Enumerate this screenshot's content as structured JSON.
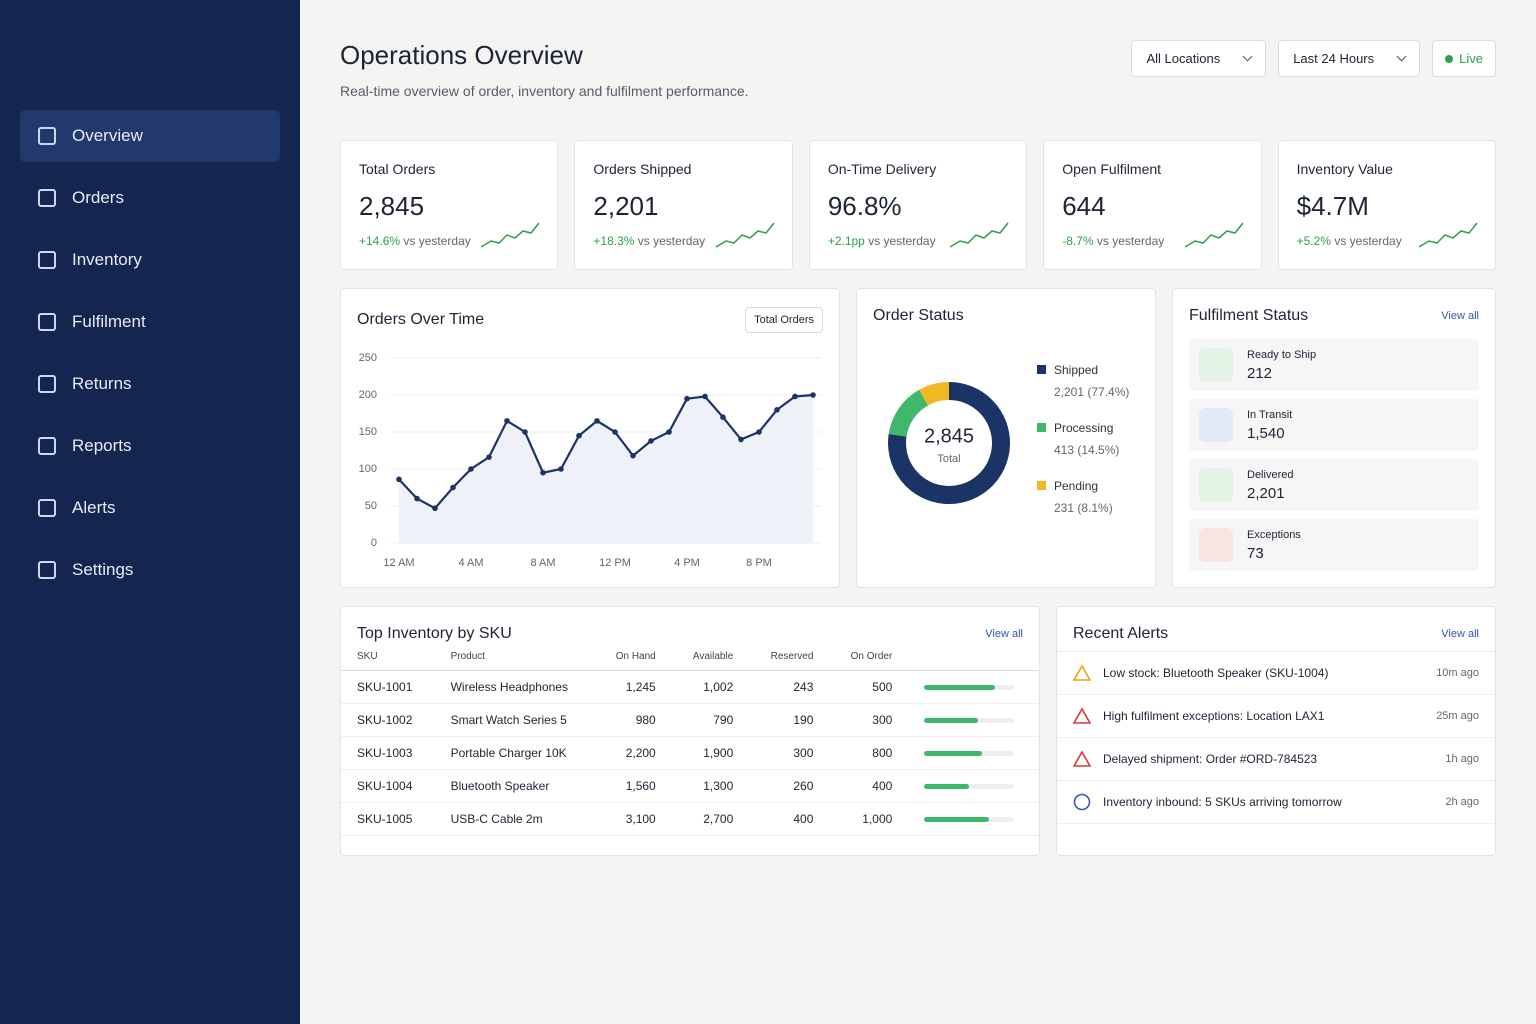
{
  "sidebar": {
    "items": [
      "Overview",
      "Orders",
      "Inventory",
      "Fulfilment",
      "Returns",
      "Reports",
      "Alerts",
      "Settings"
    ]
  },
  "header": {
    "title": "Operations Overview",
    "subtitle": "Real-time overview of order, inventory and fulfilment performance.",
    "filters": [
      "All Locations",
      "Last 24 Hours"
    ],
    "live": "Live"
  },
  "kpis": [
    {
      "label": "Total Orders",
      "value": "2,845",
      "change": "+14.6%",
      "note": "vs yesterday"
    },
    {
      "label": "Orders Shipped",
      "value": "2,201",
      "change": "+18.3%",
      "note": "vs yesterday"
    },
    {
      "label": "On-Time Delivery",
      "value": "96.8%",
      "change": "+2.1pp",
      "note": "vs yesterday"
    },
    {
      "label": "Open Fulfilment",
      "value": "644",
      "change": "-8.7%",
      "note": "vs yesterday"
    },
    {
      "label": "Inventory Value",
      "value": "$4.7M",
      "change": "+5.2%",
      "note": "vs yesterday"
    }
  ],
  "orders_over_time": {
    "type": "line",
    "title": "Orders Over Time",
    "selector": "Total Orders",
    "categories": [
      "12 AM",
      null,
      null,
      null,
      "4 AM",
      null,
      null,
      null,
      "8 AM",
      null,
      null,
      null,
      "12 PM",
      null,
      null,
      null,
      "4 PM",
      null,
      null,
      null,
      "8 PM",
      null,
      null,
      null
    ],
    "values": [
      86,
      60,
      47,
      75,
      100,
      116,
      165,
      150,
      95,
      100,
      145,
      165,
      150,
      118,
      138,
      150,
      195,
      198,
      170,
      140,
      150,
      180,
      198,
      200
    ],
    "ylim": [
      0,
      250
    ],
    "yticks": [
      0,
      50,
      100,
      150,
      200,
      250
    ],
    "color": "#1c3366",
    "grid": true
  },
  "order_status": {
    "type": "donut",
    "title": "Order Status",
    "center_value": "2,845",
    "center_label": "Total",
    "categories": [
      "Shipped",
      "Processing",
      "Pending"
    ],
    "values": [
      2201,
      413,
      231
    ],
    "value_labels": [
      "2,201",
      "413",
      "231"
    ],
    "percent_labels": [
      "(77.4%)",
      "(14.5%)",
      "(8.1%)"
    ],
    "colors": [
      "#1c3366",
      "#3fb86b",
      "#f2b823"
    ]
  },
  "fulfilment_status": {
    "title": "Fulfilment Status",
    "view_all": "View all",
    "items": [
      {
        "label": "Ready to Ship",
        "value": "212"
      },
      {
        "label": "In Transit",
        "value": "1,540"
      },
      {
        "label": "Delivered",
        "value": "2,201"
      },
      {
        "label": "Exceptions",
        "value": "73"
      }
    ]
  },
  "inventory": {
    "title": "Top Inventory by SKU",
    "view_all": "View all",
    "columns": [
      "SKU",
      "Product",
      "On Hand",
      "Available",
      "Reserved",
      "On Order"
    ],
    "rows": [
      [
        "SKU-1001",
        "Wireless Headphones",
        "1,245",
        "1,002",
        "243",
        "500"
      ],
      [
        "SKU-1002",
        "Smart Watch Series 5",
        "980",
        "790",
        "190",
        "300"
      ],
      [
        "SKU-1003",
        "Portable Charger 10K",
        "2,200",
        "1,900",
        "300",
        "800"
      ],
      [
        "SKU-1004",
        "Bluetooth Speaker",
        "1,560",
        "1,300",
        "260",
        "400"
      ],
      [
        "SKU-1005",
        "USB-C Cable 2m",
        "3,100",
        "2,700",
        "400",
        "1,000"
      ]
    ]
  },
  "alerts": {
    "title": "Recent Alerts",
    "view_all": "View all",
    "items": [
      {
        "text": "Low stock: Bluetooth Speaker (SKU-1004)",
        "time": "10m ago"
      },
      {
        "text": "High fulfilment exceptions: Location LAX1",
        "time": "25m ago"
      },
      {
        "text": "Delayed shipment: Order #ORD-784523",
        "time": "1h ago"
      },
      {
        "text": "Inventory inbound: 5 SKUs arriving tomorrow",
        "time": "2h ago"
      }
    ]
  }
}
